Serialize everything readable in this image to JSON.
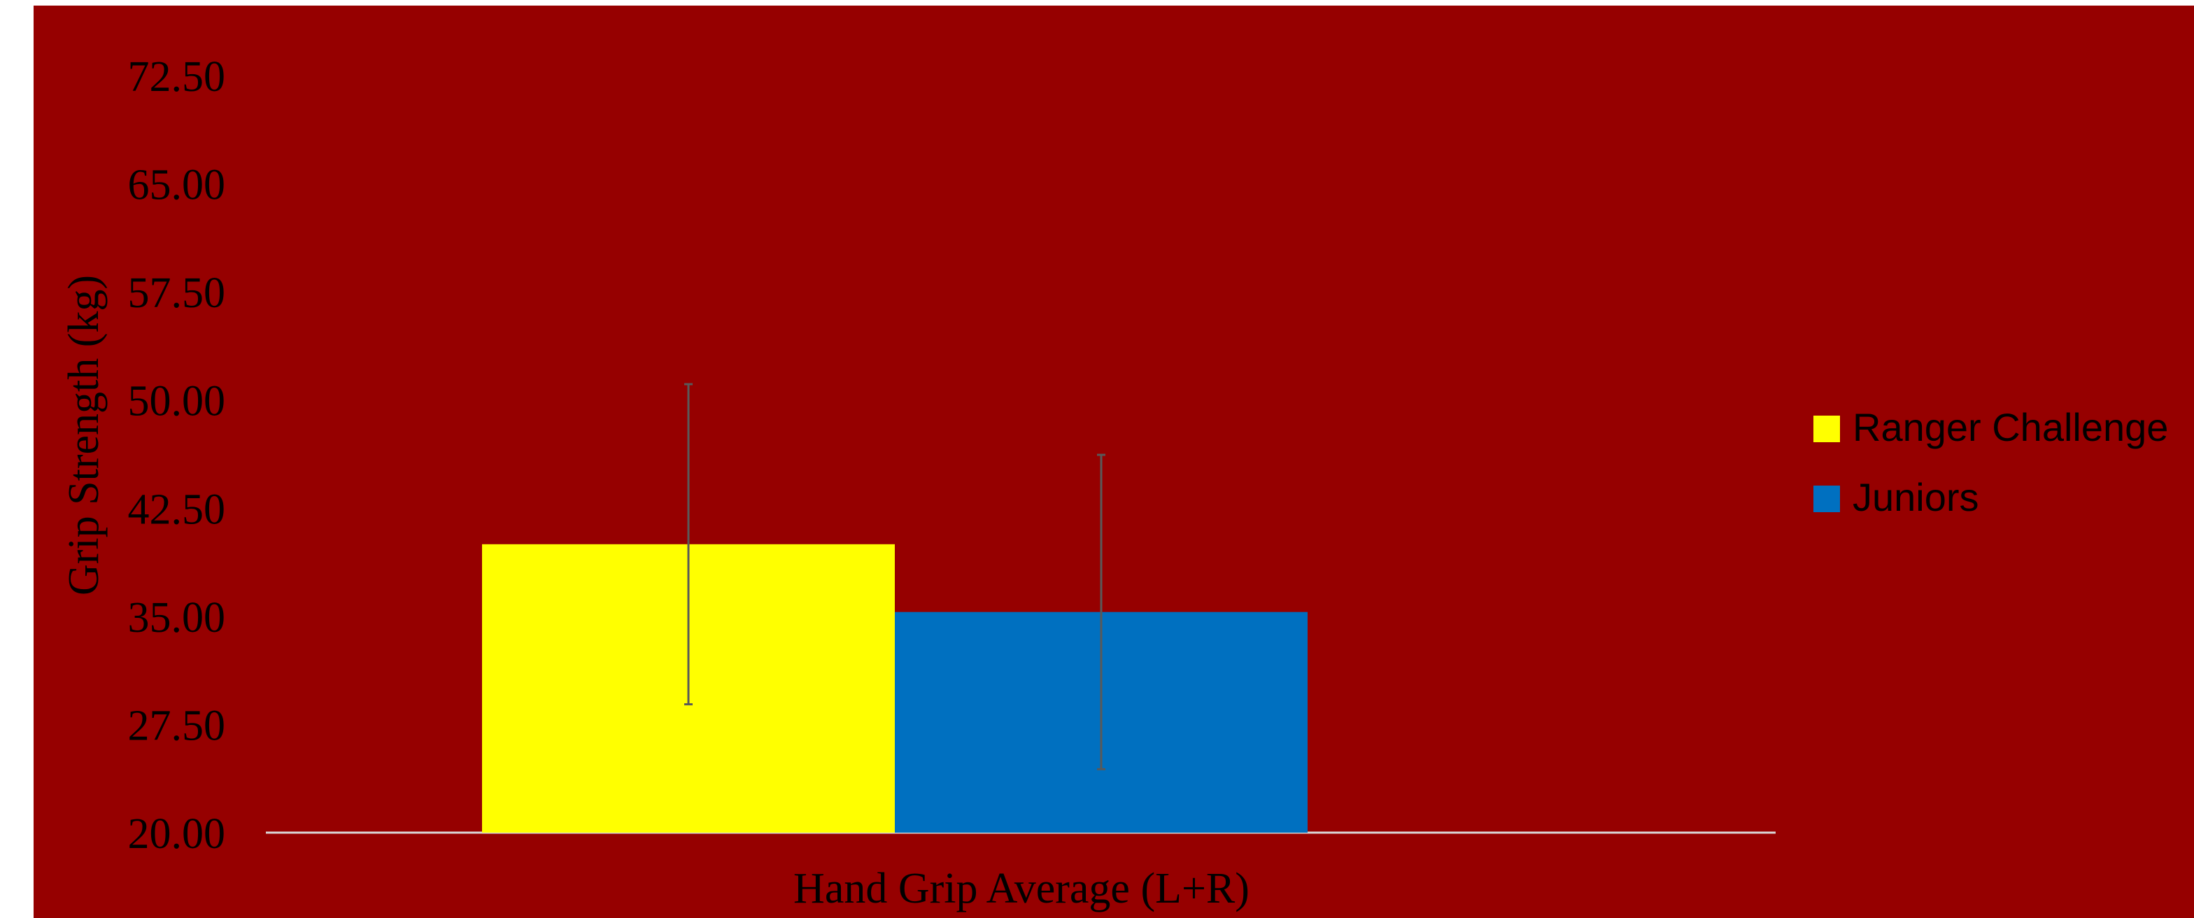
{
  "chart_data": {
    "type": "bar",
    "title": "",
    "xlabel": "Hand Grip Average (L+R)",
    "ylabel": "Grip Strength (kg)",
    "categories": [
      "Hand Grip Average (L+R)"
    ],
    "ylim": [
      20.0,
      72.5
    ],
    "yticks": [
      "20.00",
      "27.50",
      "35.00",
      "42.50",
      "50.00",
      "57.50",
      "65.00",
      "72.50"
    ],
    "grid": false,
    "legend_position": "right",
    "series": [
      {
        "name": "Ranger Challenge",
        "values": [
          40.0
        ],
        "error": [
          11.1
        ],
        "color": "#FFFF00"
      },
      {
        "name": "Juniors",
        "values": [
          35.3
        ],
        "error": [
          10.9
        ],
        "color": "#0070C0"
      }
    ],
    "colors": {
      "plot_background": "#960000",
      "text": "#000000",
      "axis_line": "#D9D9D9",
      "error_bar": "#595959"
    }
  }
}
